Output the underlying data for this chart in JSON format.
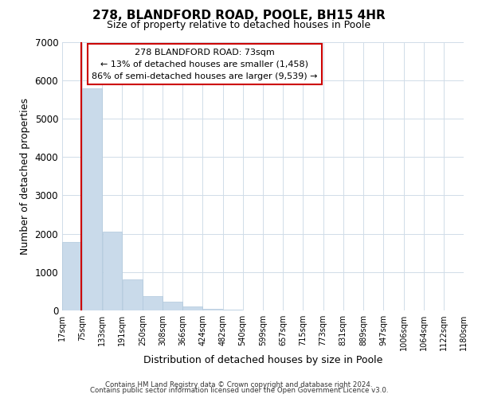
{
  "title": "278, BLANDFORD ROAD, POOLE, BH15 4HR",
  "subtitle": "Size of property relative to detached houses in Poole",
  "xlabel": "Distribution of detached houses by size in Poole",
  "ylabel": "Number of detached properties",
  "bar_color": "#c9daea",
  "bar_edge_color": "#b0c8dc",
  "grid_color": "#d0dce8",
  "annotation_box_color": "#cc0000",
  "annotation_line1": "278 BLANDFORD ROAD: 73sqm",
  "annotation_line2": "← 13% of detached houses are smaller (1,458)",
  "annotation_line3": "86% of semi-detached houses are larger (9,539) →",
  "property_line_x": 73,
  "property_line_color": "#cc0000",
  "bin_edges": [
    17,
    75,
    133,
    191,
    250,
    308,
    366,
    424,
    482,
    540,
    599,
    657,
    715,
    773,
    831,
    889,
    947,
    1006,
    1064,
    1122,
    1180
  ],
  "bin_labels": [
    "17sqm",
    "75sqm",
    "133sqm",
    "191sqm",
    "250sqm",
    "308sqm",
    "366sqm",
    "424sqm",
    "482sqm",
    "540sqm",
    "599sqm",
    "657sqm",
    "715sqm",
    "773sqm",
    "831sqm",
    "889sqm",
    "947sqm",
    "1006sqm",
    "1064sqm",
    "1122sqm",
    "1180sqm"
  ],
  "counts": [
    1780,
    5780,
    2050,
    800,
    375,
    230,
    110,
    50,
    22,
    8,
    4,
    2,
    1,
    0,
    0,
    0,
    0,
    0,
    0,
    0
  ],
  "ylim": [
    0,
    7000
  ],
  "yticks": [
    0,
    1000,
    2000,
    3000,
    4000,
    5000,
    6000,
    7000
  ],
  "footer_line1": "Contains HM Land Registry data © Crown copyright and database right 2024.",
  "footer_line2": "Contains public sector information licensed under the Open Government Licence v3.0.",
  "background_color": "#ffffff",
  "figsize": [
    6.0,
    5.0
  ],
  "dpi": 100
}
